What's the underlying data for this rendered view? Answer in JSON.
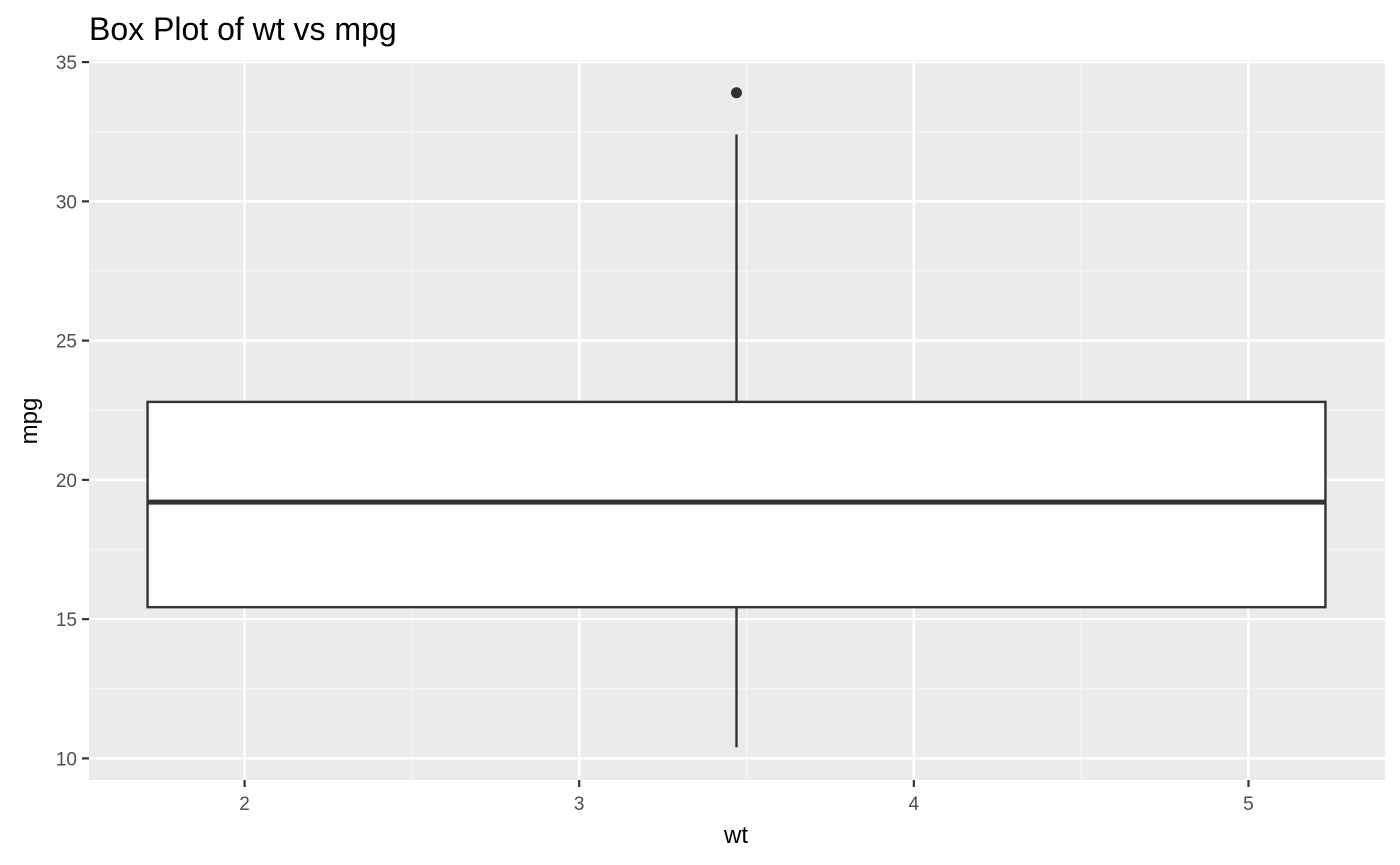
{
  "chart_data": {
    "type": "box",
    "title": "Box Plot of wt vs mpg",
    "xlabel": "wt",
    "ylabel": "mpg",
    "xlim": [
      1.535,
      5.408
    ],
    "ylim": [
      9.225,
      35.075
    ],
    "x_ticks": [
      2,
      3,
      4,
      5
    ],
    "x_tick_labels": [
      "2",
      "3",
      "4",
      "5"
    ],
    "y_ticks": [
      10,
      15,
      20,
      25,
      30,
      35
    ],
    "y_tick_labels": [
      "10",
      "15",
      "20",
      "25",
      "30",
      "35"
    ],
    "grid": true,
    "legend": "none",
    "box": {
      "x_center": 3.47,
      "x_min": 1.71,
      "x_max": 5.23,
      "whisker_low": 10.4,
      "q1": 15.43,
      "median": 19.2,
      "q3": 22.8,
      "whisker_high": 32.4,
      "outliers": [
        33.9
      ]
    },
    "colors": {
      "panel_background": "#ebebeb",
      "grid_major": "#ffffff",
      "grid_minor": "#f5f5f5",
      "box_fill": "#ffffff",
      "box_line": "#333333",
      "tick_text": "#4d4d4d",
      "title_text": "#000000"
    }
  }
}
